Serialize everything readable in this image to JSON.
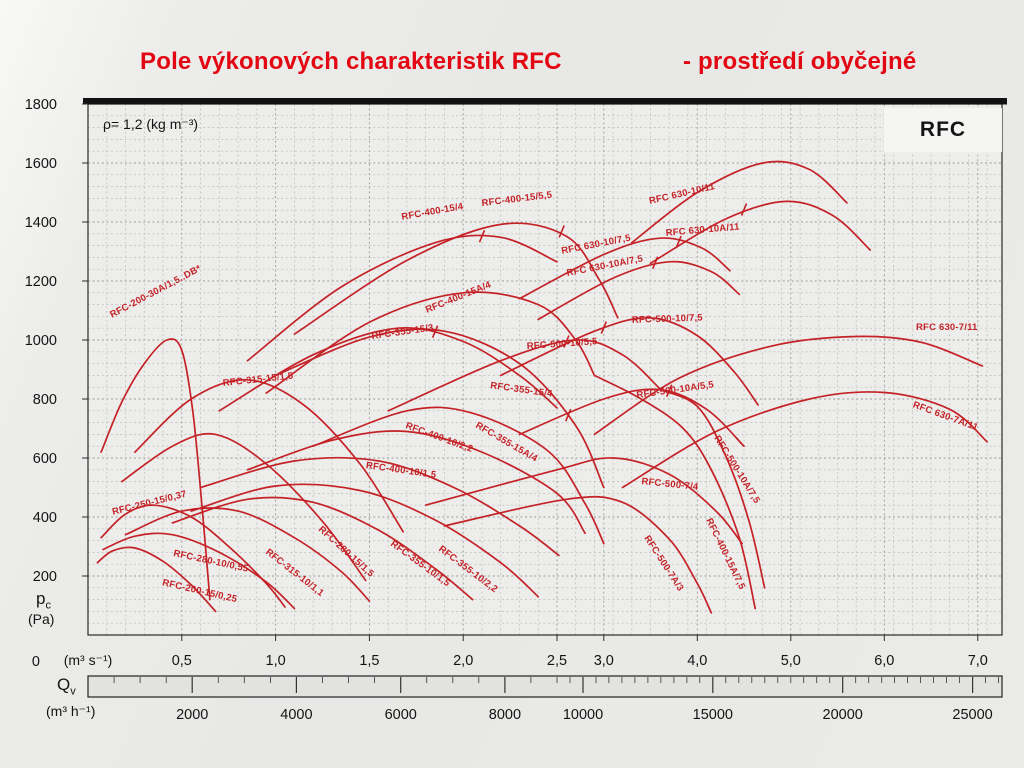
{
  "header": {
    "title": "Pole výkonových charakteristik RFC",
    "subtitle": "- prostředí obyčejné"
  },
  "badge": "RFC",
  "notes": {
    "density": "ρ= 1,2 (kg m⁻³)"
  },
  "axis_y": {
    "symbol": "p",
    "sub": "c",
    "unit": "(Pa)",
    "zero": "0"
  },
  "axis_x1": {
    "unit": "(m³ s⁻¹)"
  },
  "axis_x2": {
    "symbol": "Q",
    "sub": "v",
    "unit": "(m³ h⁻¹)"
  },
  "colors": {
    "title_red": "#e30613",
    "curve_red": "#c42227",
    "grid_minor": "#bcbcba",
    "grid_major": "#9c9c9a",
    "axis_black": "#1c1c1c"
  },
  "chart_data": {
    "type": "line",
    "title": "Pole výkonových charakteristik RFC - prostředí obyčejné",
    "ylabel": "pc (Pa)",
    "xlabel": "Qv (m³ s⁻¹) / Qv (m³ h⁻¹)",
    "ylim": [
      0,
      1800
    ],
    "grid": "fine dashed grid on",
    "legend_position": "labels along curves",
    "x_scale_note": "piecewise linear x-axis: 0-2.5 m³/s drawn at double resolution of 2.5-7 m³/s",
    "y_ticks": [
      [
        "200",
        200
      ],
      [
        "400",
        400
      ],
      [
        "600",
        600
      ],
      [
        "800",
        800
      ],
      [
        "1000",
        1000
      ],
      [
        "1200",
        1200
      ],
      [
        "1400",
        1400
      ],
      [
        "1600",
        1600
      ],
      [
        "1800",
        1800
      ]
    ],
    "x_ticks_m3s": [
      [
        "0,5",
        0.5
      ],
      [
        "1,0",
        1
      ],
      [
        "1,5",
        1.5
      ],
      [
        "2,0",
        2
      ],
      [
        "2,5",
        2.5
      ],
      [
        "3,0",
        3
      ],
      [
        "4,0",
        4
      ],
      [
        "5,0",
        5
      ],
      [
        "6,0",
        6
      ],
      [
        "7,0",
        7
      ]
    ],
    "x_ticks_m3h": [
      [
        "2000",
        2000
      ],
      [
        "4000",
        4000
      ],
      [
        "6000",
        6000
      ],
      [
        "8000",
        8000
      ],
      [
        "10000",
        10000
      ],
      [
        "15000",
        15000
      ],
      [
        "20000",
        20000
      ],
      [
        "25000",
        25000
      ]
    ],
    "series": [
      {
        "name": "RFC-200-30A/1,5..DB*",
        "points": [
          [
            0.07,
            620
          ],
          [
            0.18,
            790
          ],
          [
            0.3,
            920
          ],
          [
            0.42,
            1000
          ],
          [
            0.5,
            965
          ],
          [
            0.56,
            750
          ],
          [
            0.61,
            420
          ],
          [
            0.65,
            120
          ]
        ],
        "label": [
          0.128,
          1075,
          -28
        ]
      },
      {
        "name": "RFC-250-15/0,37",
        "points": [
          [
            0.07,
            330
          ],
          [
            0.2,
            410
          ],
          [
            0.35,
            440
          ],
          [
            0.55,
            400
          ],
          [
            0.75,
            300
          ],
          [
            0.95,
            175
          ],
          [
            1.05,
            95
          ]
        ],
        "label": [
          0.133,
          407,
          -14
        ]
      },
      {
        "name": "RFC-200-15/0,25",
        "points": [
          [
            0.05,
            245
          ],
          [
            0.13,
            285
          ],
          [
            0.25,
            295
          ],
          [
            0.4,
            250
          ],
          [
            0.55,
            170
          ],
          [
            0.68,
            80
          ]
        ],
        "label": [
          0.394,
          169,
          13
        ]
      },
      {
        "name": "RFC-280-10/0,55",
        "points": [
          [
            0.08,
            290
          ],
          [
            0.25,
            335
          ],
          [
            0.45,
            340
          ],
          [
            0.7,
            280
          ],
          [
            0.95,
            180
          ],
          [
            1.1,
            90
          ]
        ],
        "label": [
          0.453,
          268,
          12
        ]
      },
      {
        "name": "RFC-315-10/1,1",
        "points": [
          [
            0.2,
            340
          ],
          [
            0.5,
            420
          ],
          [
            0.8,
            420
          ],
          [
            1.1,
            330
          ],
          [
            1.35,
            215
          ],
          [
            1.5,
            115
          ]
        ],
        "label": [
          0.944,
          278,
          38
        ]
      },
      {
        "name": "RFC-280-15/1,5",
        "points": [
          [
            0.18,
            520
          ],
          [
            0.45,
            640
          ],
          [
            0.68,
            680
          ],
          [
            0.95,
            580
          ],
          [
            1.25,
            385
          ],
          [
            1.48,
            185
          ]
        ],
        "label": [
          1.226,
          356,
          42
        ]
      },
      {
        "name": "RFC-315-15/1,5",
        "points": [
          [
            0.25,
            620
          ],
          [
            0.55,
            800
          ],
          [
            0.85,
            865
          ],
          [
            1.15,
            780
          ],
          [
            1.45,
            580
          ],
          [
            1.68,
            350
          ]
        ],
        "label": [
          0.72,
          844,
          -6
        ]
      },
      {
        "name": "RFC-355-10/1,5",
        "points": [
          [
            0.45,
            380
          ],
          [
            0.85,
            460
          ],
          [
            1.2,
            450
          ],
          [
            1.55,
            355
          ],
          [
            1.85,
            225
          ],
          [
            2.05,
            120
          ]
        ],
        "label": [
          1.61,
          305,
          36
        ]
      },
      {
        "name": "RFC-355-10/2,2",
        "points": [
          [
            0.55,
            420
          ],
          [
            1.0,
            505
          ],
          [
            1.45,
            490
          ],
          [
            1.85,
            390
          ],
          [
            2.2,
            245
          ],
          [
            2.4,
            130
          ]
        ],
        "label": [
          1.866,
          288,
          37
        ]
      },
      {
        "name": "RFC-400-10/1,5",
        "points": [
          [
            0.6,
            500
          ],
          [
            1.1,
            590
          ],
          [
            1.55,
            590
          ],
          [
            1.95,
            500
          ],
          [
            2.3,
            370
          ],
          [
            2.52,
            270
          ]
        ],
        "label": [
          1.48,
          566,
          8
        ]
      },
      {
        "name": "RFC-400-10/2,2",
        "points": [
          [
            0.85,
            560
          ],
          [
            1.3,
            660
          ],
          [
            1.7,
            690
          ],
          [
            2.1,
            620
          ],
          [
            2.5,
            480
          ],
          [
            2.8,
            345
          ]
        ],
        "label": [
          1.69,
          702,
          20
        ]
      },
      {
        "name": "RFC-355-15/3",
        "points": [
          [
            0.7,
            760
          ],
          [
            1.2,
            950
          ],
          [
            1.65,
            1040
          ],
          [
            2.0,
            995
          ],
          [
            2.3,
            880
          ],
          [
            2.5,
            770
          ]
        ],
        "label": [
          1.514,
          1003,
          -8
        ],
        "tick": [
          1.85,
          1028
        ]
      },
      {
        "name": "RFC-355-15/4",
        "points": [
          [
            1.0,
            880
          ],
          [
            1.5,
            1010
          ],
          [
            1.9,
            1030
          ],
          [
            2.3,
            920
          ],
          [
            2.7,
            710
          ],
          [
            3.0,
            500
          ]
        ],
        "label": [
          2.143,
          837,
          8
        ],
        "tick": [
          2.62,
          745
        ]
      },
      {
        "name": "RFC-355-15A/4",
        "points": [
          [
            1.2,
            640
          ],
          [
            1.7,
            760
          ],
          [
            2.05,
            752
          ],
          [
            2.45,
            625
          ],
          [
            2.8,
            445
          ],
          [
            3.0,
            310
          ]
        ],
        "label": [
          2.063,
          705,
          30
        ]
      },
      {
        "name": "RFC-400-15A/4",
        "points": [
          [
            0.95,
            820
          ],
          [
            1.5,
            1060
          ],
          [
            2.0,
            1160
          ],
          [
            2.4,
            1120
          ],
          [
            2.7,
            1000
          ],
          [
            2.9,
            880
          ]
        ],
        "label": [
          1.807,
          1092,
          -22
        ]
      },
      {
        "name": "RFC-400-15A/7,5",
        "points": [
          [
            2.9,
            880
          ],
          [
            3.4,
            800
          ],
          [
            3.85,
            700
          ],
          [
            4.15,
            560
          ],
          [
            4.45,
            330
          ],
          [
            4.62,
            90
          ]
        ],
        "label": [
          4.094,
          390,
          64
        ]
      },
      {
        "name": "RFC-500-10/5,5",
        "points": [
          [
            1.6,
            760
          ],
          [
            2.2,
            930
          ],
          [
            2.7,
            1000
          ],
          [
            3.2,
            950
          ],
          [
            3.6,
            835
          ]
        ],
        "label": [
          2.34,
          969,
          -4
        ],
        "tick": [
          2.6,
          995
        ]
      },
      {
        "name": "RFC-500-10/7,5",
        "points": [
          [
            2.2,
            880
          ],
          [
            2.9,
            1030
          ],
          [
            3.5,
            1075
          ],
          [
            4.0,
            1015
          ],
          [
            4.4,
            890
          ],
          [
            4.65,
            780
          ]
        ],
        "label": [
          3.302,
          1058,
          -2
        ],
        "tick": [
          3.0,
          1042
        ]
      },
      {
        "name": "RFC-500-10A/5,5",
        "points": [
          [
            2.3,
            680
          ],
          [
            3.0,
            800
          ],
          [
            3.6,
            832
          ],
          [
            4.1,
            765
          ],
          [
            4.5,
            640
          ]
        ],
        "label": [
          3.356,
          803,
          -8
        ],
        "tick": [
          3.7,
          828
        ]
      },
      {
        "name": "RFC-500-10A/7,5",
        "points": [
          [
            3.6,
            832
          ],
          [
            4.0,
            775
          ],
          [
            4.3,
            610
          ],
          [
            4.55,
            390
          ],
          [
            4.72,
            160
          ]
        ],
        "label": [
          4.179,
          668,
          58
        ]
      },
      {
        "name": "RFC-500-7/4",
        "points": [
          [
            1.8,
            440
          ],
          [
            2.5,
            560
          ],
          [
            3.1,
            600
          ],
          [
            3.7,
            545
          ],
          [
            4.2,
            420
          ],
          [
            4.48,
            310
          ]
        ],
        "label": [
          3.4,
          512,
          6
        ]
      },
      {
        "name": "RFC-500-7A/3",
        "points": [
          [
            1.9,
            370
          ],
          [
            2.6,
            460
          ],
          [
            3.2,
            450
          ],
          [
            3.7,
            325
          ],
          [
            4.0,
            175
          ],
          [
            4.15,
            75
          ]
        ],
        "label": [
          3.43,
          329,
          57
        ]
      },
      {
        "name": "RFC 630-7/11",
        "points": [
          [
            2.9,
            680
          ],
          [
            3.8,
            870
          ],
          [
            4.8,
            980
          ],
          [
            5.7,
            1012
          ],
          [
            6.4,
            992
          ],
          [
            7.05,
            912
          ]
        ],
        "label": [
          6.34,
          1034,
          0
        ]
      },
      {
        "name": "RFC 630-7A/11",
        "points": [
          [
            3.2,
            500
          ],
          [
            4.2,
            690
          ],
          [
            5.2,
            800
          ],
          [
            6.0,
            822
          ],
          [
            6.7,
            765
          ],
          [
            7.1,
            655
          ]
        ],
        "label": [
          6.3,
          773,
          20
        ]
      },
      {
        "name": "RFC 630-10/7,5",
        "points": [
          [
            2.3,
            1140
          ],
          [
            3.0,
            1290
          ],
          [
            3.6,
            1345
          ],
          [
            4.05,
            1312
          ],
          [
            4.35,
            1235
          ]
        ],
        "label": [
          2.553,
          1292,
          -11
        ],
        "tick": [
          3.8,
          1332
        ]
      },
      {
        "name": "RFC 630-10/11",
        "points": [
          [
            3.3,
            1330
          ],
          [
            4.0,
            1500
          ],
          [
            4.7,
            1600
          ],
          [
            5.2,
            1578
          ],
          [
            5.6,
            1465
          ]
        ],
        "label": [
          3.494,
          1461,
          -13
        ]
      },
      {
        "name": "RFC 630-10A/7,5",
        "points": [
          [
            2.4,
            1070
          ],
          [
            3.1,
            1210
          ],
          [
            3.7,
            1265
          ],
          [
            4.15,
            1232
          ],
          [
            4.45,
            1155
          ]
        ],
        "label": [
          2.61,
          1217,
          -11
        ],
        "tick": [
          3.55,
          1262
        ]
      },
      {
        "name": "RFC 630-10A/11",
        "points": [
          [
            3.5,
            1260
          ],
          [
            4.3,
            1410
          ],
          [
            4.95,
            1470
          ],
          [
            5.45,
            1422
          ],
          [
            5.85,
            1305
          ]
        ],
        "label": [
          3.666,
          1353,
          -5
        ],
        "tick": [
          4.5,
          1442
        ]
      },
      {
        "name": "RFC-400-15/4",
        "points": [
          [
            0.85,
            930
          ],
          [
            1.35,
            1180
          ],
          [
            1.85,
            1330
          ],
          [
            2.2,
            1348
          ],
          [
            2.5,
            1265
          ]
        ],
        "label": [
          1.674,
          1407,
          -10
        ],
        "tick": [
          2.1,
          1352
        ]
      },
      {
        "name": "RFC-400-15/5,5",
        "points": [
          [
            1.1,
            1020
          ],
          [
            1.7,
            1270
          ],
          [
            2.2,
            1392
          ],
          [
            2.6,
            1352
          ],
          [
            2.95,
            1205
          ],
          [
            3.15,
            1075
          ]
        ],
        "label": [
          2.1,
          1454,
          -7
        ],
        "tick": [
          2.55,
          1368
        ]
      }
    ]
  }
}
